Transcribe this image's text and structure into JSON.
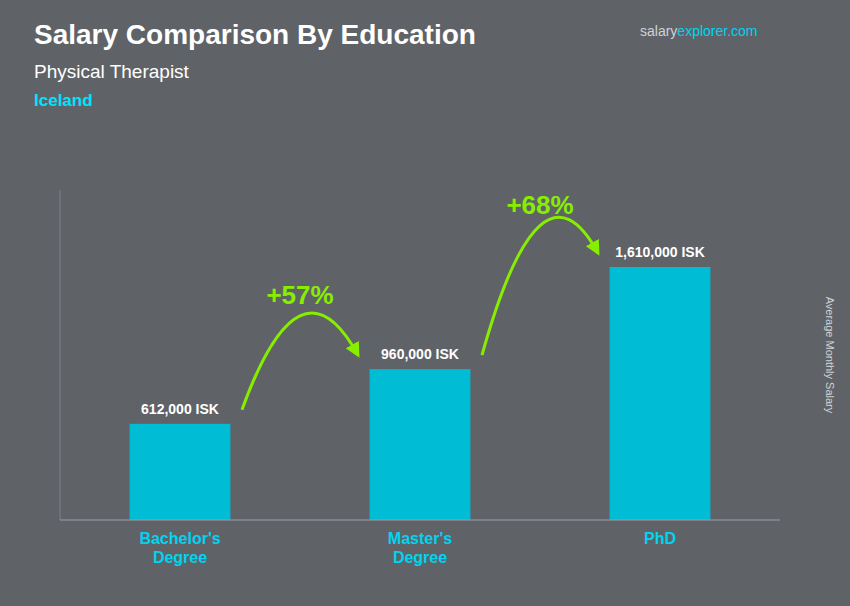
{
  "chart_data": {
    "type": "bar",
    "title": "Salary Comparison By Education",
    "subtitle": "Physical Therapist",
    "country": "Iceland",
    "source": [
      "salary",
      "explorer.com"
    ],
    "y_label": "Average Monthly Salary",
    "categories": [
      "Bachelor's\nDegree",
      "Master's\nDegree",
      "PhD"
    ],
    "values": [
      612000,
      960000,
      1610000
    ],
    "value_labels": [
      "612,000 ISK",
      "960,000 ISK",
      "1,610,000 ISK"
    ],
    "data_labels": true,
    "color": "#00bcd4",
    "annotations": [
      {
        "text": "+57%",
        "color": "#88ee00"
      },
      {
        "text": "+68%",
        "color": "#88ee00"
      }
    ],
    "ylim": [
      0,
      2100000
    ],
    "tick_labels": "x",
    "grid": false
  }
}
